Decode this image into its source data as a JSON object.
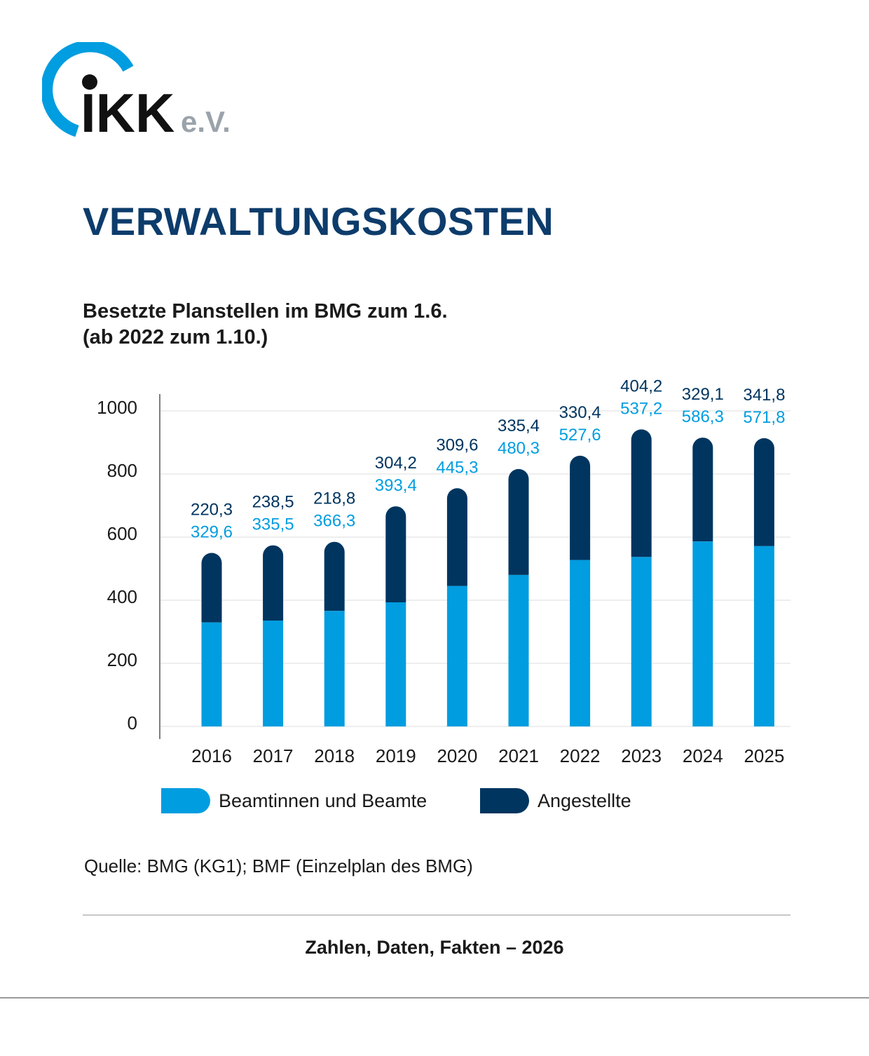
{
  "logo": {
    "brand": "IKK",
    "suffix": "e.V."
  },
  "page_title": "VERWALTUNGSKOSTEN",
  "subtitle_line1": "Besetzte Planstellen im BMG zum 1.6.",
  "subtitle_line2": "(ab 2022 zum 1.10.)",
  "colors": {
    "beamte": "#009de0",
    "angestellte": "#003560",
    "title": "#0d3c6b",
    "logo_ring": "#009de0",
    "logo_suffix": "#9aa3ab"
  },
  "chart_data": {
    "type": "bar",
    "stacked": true,
    "categories": [
      "2016",
      "2017",
      "2018",
      "2019",
      "2020",
      "2021",
      "2022",
      "2023",
      "2024",
      "2025"
    ],
    "series": [
      {
        "name": "Beamtinnen und Beamte",
        "values": [
          329.6,
          335.5,
          366.3,
          393.4,
          445.3,
          480.3,
          527.6,
          537.2,
          586.3,
          571.8
        ],
        "labels": [
          "329,6",
          "335,5",
          "366,3",
          "393,4",
          "445,3",
          "480,3",
          "527,6",
          "537,2",
          "586,3",
          "571,8"
        ]
      },
      {
        "name": "Angestellte",
        "values": [
          220.3,
          238.5,
          218.8,
          304.2,
          309.6,
          335.4,
          330.4,
          404.2,
          329.1,
          341.8
        ],
        "labels": [
          "220,3",
          "238,5",
          "218,8",
          "304,2",
          "309,6",
          "335,4",
          "330,4",
          "404,2",
          "329,1",
          "341,8"
        ]
      }
    ],
    "yticks": [
      "0",
      "200",
      "400",
      "600",
      "800",
      "1000"
    ],
    "ylim": [
      0,
      1000
    ],
    "grid": true,
    "legend_position": "bottom"
  },
  "source": "Quelle: BMG (KG1); BMF (Einzelplan des BMG)",
  "footer": "Zahlen, Daten, Fakten – 2026"
}
